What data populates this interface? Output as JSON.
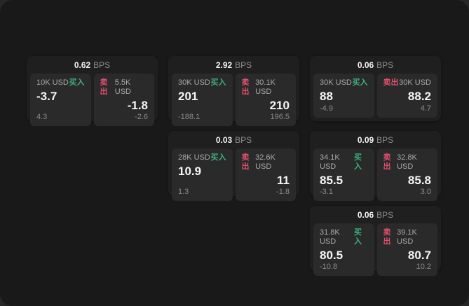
{
  "labels": {
    "buy": "买入",
    "sell": "卖出",
    "bps": "BPS"
  },
  "colors": {
    "buy": "#3eb07c",
    "sell": "#e04f6c",
    "outer-bg": "#272727",
    "surface-bg": "#191919",
    "card-bg": "#1f1f1f",
    "panel-bg": "#2a2a2a"
  },
  "cards": [
    {
      "bps": "0.62",
      "buy": {
        "notional": "10K USD",
        "price": "-3.7",
        "delta": "4.3"
      },
      "sell": {
        "notional": "5.5K USD",
        "price": "-1.8",
        "delta": "-2.6"
      }
    },
    {
      "bps": "2.92",
      "buy": {
        "notional": "30K USD",
        "price": "201",
        "delta": "-188.1"
      },
      "sell": {
        "notional": "30.1K USD",
        "price": "210",
        "delta": "196.5"
      }
    },
    {
      "bps": "0.06",
      "buy": {
        "notional": "30K USD",
        "price": "88",
        "delta": "-4.9"
      },
      "sell": {
        "notional": "30K USD",
        "price": "88.2",
        "delta": "4.7"
      }
    },
    {
      "bps": "0.03",
      "buy": {
        "notional": "28K USD",
        "price": "10.9",
        "delta": "1.3"
      },
      "sell": {
        "notional": "32.6K USD",
        "price": "11",
        "delta": "-1.8"
      }
    },
    {
      "bps": "0.09",
      "buy": {
        "notional": "34.1K USD",
        "price": "85.5",
        "delta": "-3.1"
      },
      "sell": {
        "notional": "32.8K USD",
        "price": "85.8",
        "delta": "3.0"
      }
    },
    {
      "bps": "0.06",
      "buy": {
        "notional": "31.8K USD",
        "price": "80.5",
        "delta": "-10.8"
      },
      "sell": {
        "notional": "39.1K USD",
        "price": "80.7",
        "delta": "10.2"
      }
    }
  ]
}
